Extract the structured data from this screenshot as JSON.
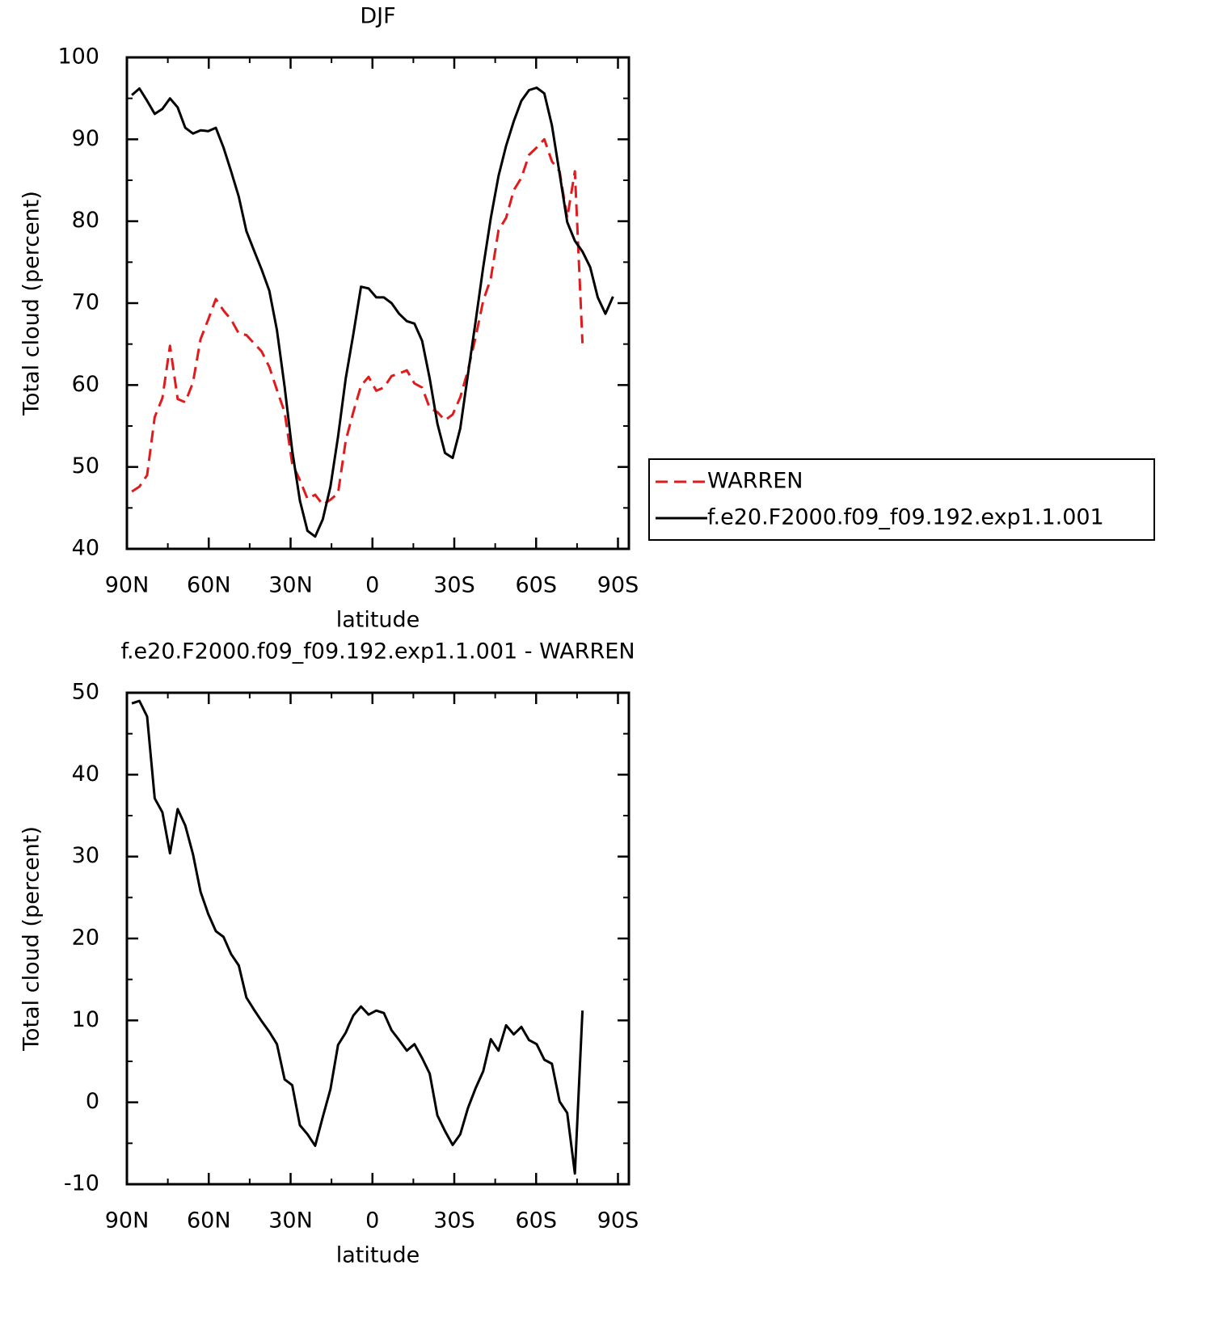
{
  "chart_data": [
    {
      "type": "line",
      "title": "DJF",
      "xlabel": "latitude",
      "ylabel": "Total cloud (percent)",
      "x": [
        88.2,
        85.4,
        82.6,
        79.8,
        77.0,
        74.2,
        71.4,
        68.6,
        65.8,
        63.0,
        60.2,
        57.4,
        54.6,
        51.8,
        49.0,
        46.2,
        43.4,
        40.6,
        37.8,
        35.0,
        32.2,
        29.4,
        26.6,
        23.8,
        21.0,
        18.2,
        15.4,
        12.6,
        9.8,
        7.0,
        4.2,
        1.4,
        -1.4,
        -4.2,
        -7.0,
        -9.8,
        -12.6,
        -15.4,
        -18.2,
        -21.0,
        -23.8,
        -26.6,
        -29.4,
        -32.2,
        -35.0,
        -37.8,
        -40.6,
        -43.4,
        -46.2,
        -49.0,
        -51.8,
        -54.6,
        -57.4,
        -60.2,
        -63.0,
        -65.8,
        -68.6,
        -71.4,
        -74.2,
        -77.0,
        -79.8,
        -82.6,
        -85.4,
        -88.2
      ],
      "series": [
        {
          "name": "WARREN",
          "color": "#e31a1c",
          "dashed": true,
          "values": [
            47.0,
            47.6,
            49.0,
            56.1,
            58.4,
            64.8,
            58.3,
            57.9,
            60.3,
            65.6,
            68.0,
            70.5,
            69.1,
            68.0,
            66.3,
            66.1,
            65.1,
            64.1,
            62.2,
            59.4,
            56.7,
            50.4,
            48.4,
            46.1,
            46.6,
            45.4,
            46.0,
            46.8,
            53.2,
            56.7,
            59.9,
            61.0,
            59.3,
            59.7,
            61.1,
            61.4,
            61.8,
            60.2,
            59.7,
            57.2,
            56.7,
            55.7,
            56.4,
            58.5,
            61.8,
            65.8,
            70.3,
            73.0,
            78.9,
            80.4,
            83.8,
            85.3,
            88.1,
            89.0,
            90.0,
            87.3,
            86.1,
            80.4,
            86.1,
            65.1,
            null,
            null,
            null,
            null
          ]
        },
        {
          "name": "f.e20.F2000.f09_f09.192.exp1.1.001",
          "color": "#000000",
          "dashed": false,
          "values": [
            95.4,
            96.2,
            94.7,
            93.1,
            93.7,
            95.0,
            93.9,
            91.4,
            90.7,
            91.1,
            91.0,
            91.4,
            89.0,
            86.1,
            83.0,
            78.8,
            76.4,
            74.1,
            71.5,
            66.7,
            59.8,
            52.0,
            45.9,
            42.2,
            41.5,
            43.6,
            47.6,
            53.7,
            60.8,
            66.2,
            72.0,
            71.8,
            70.7,
            70.7,
            70.0,
            68.7,
            67.8,
            67.5,
            65.4,
            60.8,
            55.3,
            51.7,
            51.1,
            54.7,
            61.3,
            67.7,
            74.4,
            80.4,
            85.5,
            89.2,
            92.2,
            94.7,
            96.0,
            96.3,
            95.6,
            91.7,
            85.8,
            79.9,
            77.6,
            76.3,
            74.4,
            70.7,
            68.7,
            70.8
          ]
        }
      ],
      "xlim": [
        90,
        -94
      ],
      "xticks": [
        {
          "value": 90,
          "label": "90N"
        },
        {
          "value": 60,
          "label": "60N"
        },
        {
          "value": 30,
          "label": "30N"
        },
        0,
        {
          "value": -30,
          "label": "30S"
        },
        {
          "value": -60,
          "label": "60S"
        },
        {
          "value": -90,
          "label": "90S"
        }
      ],
      "ylim": [
        40,
        100
      ],
      "yticks": [
        40,
        50,
        60,
        70,
        80,
        90,
        100
      ],
      "legend": "right"
    },
    {
      "type": "line",
      "title": "f.e20.F2000.f09_f09.192.exp1.1.001 - WARREN",
      "xlabel": "latitude",
      "ylabel": "Total cloud (percent)",
      "x": [
        88.2,
        85.4,
        82.6,
        79.8,
        77.0,
        74.2,
        71.4,
        68.6,
        65.8,
        63.0,
        60.2,
        57.4,
        54.6,
        51.8,
        49.0,
        46.2,
        43.4,
        40.6,
        37.8,
        35.0,
        32.2,
        29.4,
        26.6,
        23.8,
        21.0,
        18.2,
        15.4,
        12.6,
        9.8,
        7.0,
        4.2,
        1.4,
        -1.4,
        -4.2,
        -7.0,
        -9.8,
        -12.6,
        -15.4,
        -18.2,
        -21.0,
        -23.8,
        -26.6,
        -29.4,
        -32.2,
        -35.0,
        -37.8,
        -40.6,
        -43.4,
        -46.2,
        -49.0,
        -51.8,
        -54.6,
        -57.4,
        -60.2,
        -63.0,
        -65.8,
        -68.6,
        -71.4,
        -74.2,
        -77.0
      ],
      "series": [
        {
          "color": "#000000",
          "dashed": false,
          "values": [
            48.7,
            49.0,
            47.1,
            37.1,
            35.4,
            30.4,
            35.8,
            33.8,
            30.3,
            25.7,
            23.0,
            20.9,
            20.2,
            18.1,
            16.7,
            12.8,
            11.3,
            9.9,
            8.6,
            7.1,
            2.8,
            2.1,
            -2.8,
            -3.9,
            -5.3,
            -1.8,
            1.6,
            7.0,
            8.5,
            10.6,
            11.7,
            10.7,
            11.2,
            10.9,
            8.8,
            7.6,
            6.3,
            7.1,
            5.4,
            3.5,
            -1.6,
            -3.5,
            -5.2,
            -3.9,
            -0.7,
            1.7,
            3.8,
            7.7,
            6.3,
            9.4,
            8.3,
            9.2,
            7.6,
            7.1,
            5.2,
            4.7,
            0.1,
            -1.3,
            -8.7,
            11.2
          ]
        }
      ],
      "xlim": [
        90,
        -94
      ],
      "xticks": [
        {
          "value": 90,
          "label": "90N"
        },
        {
          "value": 60,
          "label": "60N"
        },
        {
          "value": 30,
          "label": "30N"
        },
        0,
        {
          "value": -30,
          "label": "30S"
        },
        {
          "value": -60,
          "label": "60S"
        },
        {
          "value": -90,
          "label": "90S"
        }
      ],
      "ylim": [
        -10,
        50
      ],
      "yticks": [
        -10,
        0,
        10,
        20,
        30,
        40,
        50
      ]
    }
  ]
}
